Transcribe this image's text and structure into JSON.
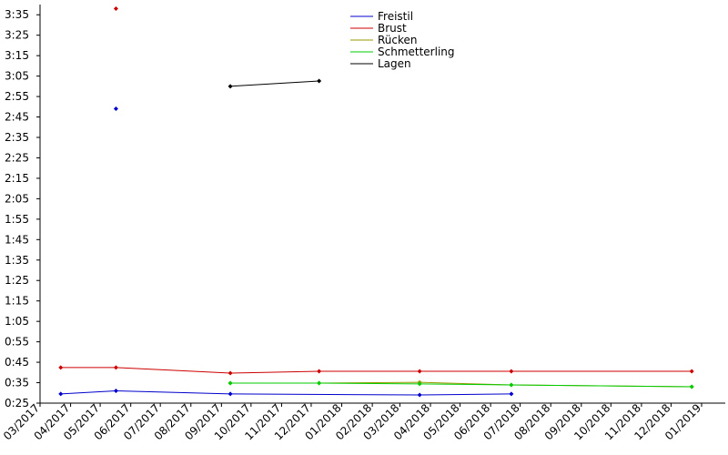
{
  "chart_data": {
    "type": "line",
    "xlim": [
      "2017-03-01",
      "2019-01-25"
    ],
    "xticks": [
      {
        "value": "2017-03-01",
        "label": "03/2017"
      },
      {
        "value": "2017-04-01",
        "label": "04/2017"
      },
      {
        "value": "2017-05-01",
        "label": "05/2017"
      },
      {
        "value": "2017-06-01",
        "label": "06/2017"
      },
      {
        "value": "2017-07-01",
        "label": "07/2017"
      },
      {
        "value": "2017-08-01",
        "label": "08/2017"
      },
      {
        "value": "2017-09-01",
        "label": "09/2017"
      },
      {
        "value": "2017-10-01",
        "label": "10/2017"
      },
      {
        "value": "2017-11-01",
        "label": "11/2017"
      },
      {
        "value": "2017-12-01",
        "label": "12/2017"
      },
      {
        "value": "2018-01-01",
        "label": "01/2018"
      },
      {
        "value": "2018-02-01",
        "label": "02/2018"
      },
      {
        "value": "2018-03-01",
        "label": "03/2018"
      },
      {
        "value": "2018-04-01",
        "label": "04/2018"
      },
      {
        "value": "2018-05-01",
        "label": "05/2018"
      },
      {
        "value": "2018-06-01",
        "label": "06/2018"
      },
      {
        "value": "2018-07-01",
        "label": "07/2018"
      },
      {
        "value": "2018-08-01",
        "label": "08/2018"
      },
      {
        "value": "2018-09-01",
        "label": "09/2018"
      },
      {
        "value": "2018-10-01",
        "label": "10/2018"
      },
      {
        "value": "2018-11-01",
        "label": "11/2018"
      },
      {
        "value": "2018-12-01",
        "label": "12/2018"
      },
      {
        "value": "2019-01-01",
        "label": "01/2019"
      }
    ],
    "ylim": [
      25,
      220
    ],
    "yticks": [
      {
        "value": 25,
        "label": "0:25"
      },
      {
        "value": 35,
        "label": "0:35"
      },
      {
        "value": 45,
        "label": "0:45"
      },
      {
        "value": 55,
        "label": "0:55"
      },
      {
        "value": 65,
        "label": "1:05"
      },
      {
        "value": 75,
        "label": "1:15"
      },
      {
        "value": 85,
        "label": "1:25"
      },
      {
        "value": 95,
        "label": "1:35"
      },
      {
        "value": 105,
        "label": "1:45"
      },
      {
        "value": 115,
        "label": "1:55"
      },
      {
        "value": 125,
        "label": "2:05"
      },
      {
        "value": 135,
        "label": "2:15"
      },
      {
        "value": 145,
        "label": "2:25"
      },
      {
        "value": 155,
        "label": "2:35"
      },
      {
        "value": 165,
        "label": "2:45"
      },
      {
        "value": 175,
        "label": "2:55"
      },
      {
        "value": 185,
        "label": "3:05"
      },
      {
        "value": 195,
        "label": "3:15"
      },
      {
        "value": 205,
        "label": "3:25"
      },
      {
        "value": 215,
        "label": "3:35"
      }
    ],
    "grid": false,
    "legend": "top",
    "series": [
      {
        "name": "Freistil",
        "color": "#0000cc",
        "x": [
          "2017-05-17",
          null,
          "2017-03-22",
          "2017-05-17",
          "2017-09-10",
          "2018-03-21",
          "2018-06-22"
        ],
        "values": [
          169,
          null,
          29.5,
          31,
          29.5,
          29,
          29.5
        ]
      },
      {
        "name": "Brust",
        "color": "#cc0000",
        "x": [
          "2017-05-17",
          null,
          "2017-03-22",
          "2017-05-17",
          "2017-09-10",
          "2017-12-09",
          "2018-03-21",
          "2018-06-22",
          "2018-12-22"
        ],
        "values": [
          218,
          null,
          42.4,
          42.4,
          39.7,
          40.6,
          40.6,
          40.6,
          40.6
        ]
      },
      {
        "name": "Rücken",
        "color": "#999900",
        "x": [
          "2017-09-10",
          "2017-12-09",
          "2018-03-21",
          "2018-06-22",
          "2018-12-22"
        ],
        "values": [
          34.8,
          34.8,
          35.2,
          33.9,
          33
        ]
      },
      {
        "name": "Schmetterling",
        "color": "#00cc00",
        "x": [
          "2017-09-10",
          "2017-12-09",
          "2018-03-21",
          "2018-06-22",
          "2018-12-22"
        ],
        "values": [
          34.8,
          34.8,
          34.4,
          33.9,
          33
        ]
      },
      {
        "name": "Lagen",
        "color": "#000000",
        "x": [
          "2017-09-10",
          "2017-12-09"
        ],
        "values": [
          180,
          182.6
        ]
      }
    ]
  }
}
